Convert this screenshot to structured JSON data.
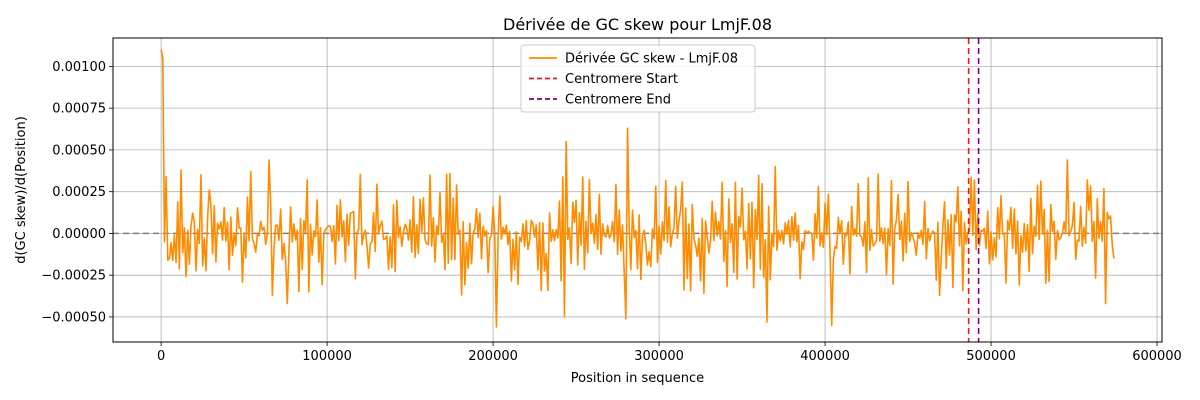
{
  "chart_data": {
    "type": "line",
    "title": "Dérivée de GC skew pour LmjF.08",
    "xlabel": "Position in sequence",
    "ylabel": "d(GC skew)/d(Position)",
    "xlim": [
      -29000,
      603000
    ],
    "ylim": [
      -0.00065,
      0.00117
    ],
    "x_ticks": [
      0,
      100000,
      200000,
      300000,
      400000,
      500000,
      600000
    ],
    "x_tick_labels": [
      "0",
      "100000",
      "200000",
      "300000",
      "400000",
      "500000",
      "600000"
    ],
    "y_ticks": [
      -0.0005,
      -0.00025,
      0,
      0.00025,
      0.0005,
      0.00075,
      0.001
    ],
    "y_tick_labels": [
      "−0.00050",
      "−0.00025",
      "0.00000",
      "0.00025",
      "0.00050",
      "0.00075",
      "0.00100"
    ],
    "grid": true,
    "legend_position": "top-center",
    "zero_line": {
      "y": 0,
      "color": "#808080",
      "style": "dashed"
    },
    "series": [
      {
        "name": "Dérivée GC skew - LmjF.08",
        "color": "#ff8c00",
        "x_start": 0,
        "x_step": 1000,
        "x_end": 574000,
        "pinned_points": [
          [
            0,
            0.0011
          ],
          [
            1000,
            0.00105
          ],
          [
            2000,
            -5e-05
          ],
          [
            3000,
            0.00034
          ],
          [
            4000,
            -0.00016
          ],
          [
            12000,
            0.00038
          ],
          [
            29000,
            0.00026
          ],
          [
            65000,
            0.00044
          ],
          [
            67000,
            -0.00037
          ],
          [
            76000,
            -0.00042
          ],
          [
            88000,
            0.00032
          ],
          [
            89000,
            -0.00035
          ],
          [
            202000,
            -0.00056
          ],
          [
            244000,
            0.00055
          ],
          [
            243000,
            -0.0005
          ],
          [
            281000,
            0.00063
          ],
          [
            280000,
            -0.00051
          ],
          [
            365000,
            -0.00053
          ],
          [
            404000,
            -0.00055
          ],
          [
            370000,
            0.0004
          ],
          [
            546000,
            0.00044
          ],
          [
            569000,
            -0.00042
          ],
          [
            574000,
            -0.00015
          ]
        ]
      }
    ],
    "vlines": [
      {
        "name": "Centromere Start",
        "x": 486500,
        "color": "#e41a1c",
        "style": "dashed"
      },
      {
        "name": "Centromere End",
        "x": 492500,
        "color": "#800080",
        "style": "dashed"
      }
    ]
  }
}
